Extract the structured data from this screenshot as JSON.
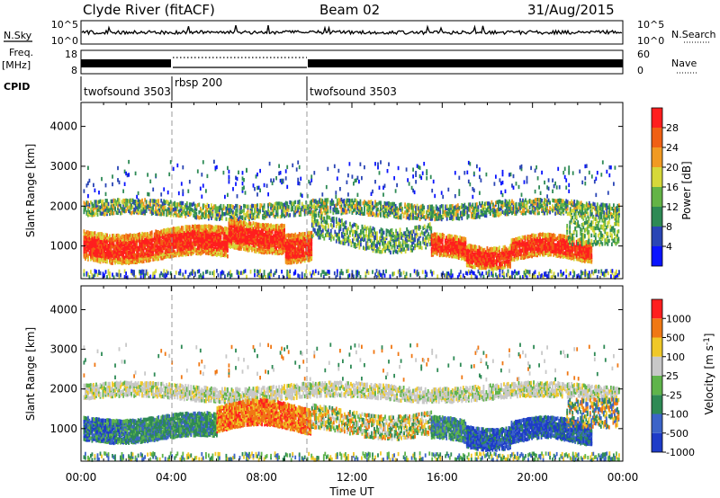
{
  "header": {
    "title": "Clyde River (fitACF)",
    "beam": "Beam 02",
    "date": "31/Aug/2015"
  },
  "top_panels": {
    "nsky_label": "N.Sky",
    "nsearch_label": "N.Search",
    "freq_label": "Freq.",
    "freq_unit": "[MHz]",
    "nave_label": "Nave",
    "cpid_label": "CPID",
    "nsky_ticks": [
      "10^5",
      "10^0"
    ],
    "nsearch_ticks": [
      "10^5",
      "10^0"
    ],
    "freq_ticks": [
      "18",
      "8"
    ],
    "nave_ticks": [
      "60",
      "0"
    ]
  },
  "cpid_segments": [
    {
      "label": "twofsound 3503",
      "start_hour": 0
    },
    {
      "label": "rbsp 200",
      "start_hour": 4
    },
    {
      "label": "twofsound 3503",
      "start_hour": 10
    }
  ],
  "chart_data": [
    {
      "type": "heatmap",
      "title": "Power",
      "ylabel": "Slant Range [km]",
      "xlabel": "",
      "x_range_hours": [
        0,
        24
      ],
      "ylim": [
        180,
        4600
      ],
      "yticks": [
        "1000",
        "2000",
        "3000",
        "4000"
      ],
      "colorbar_label": "Power [dB]",
      "colorbar_ticks": [
        "4",
        "8",
        "12",
        "16",
        "20",
        "24",
        "28"
      ],
      "colorbar_colors": [
        "#0a14ff",
        "#2a45b5",
        "#2e8a55",
        "#64b446",
        "#d6d83a",
        "#f19a22",
        "#f06014",
        "#ff1e1e"
      ],
      "bands": [
        {
          "name": "main",
          "start_hour": 0.2,
          "end_hour": 10.2,
          "center_km": 1000,
          "dominant": "high"
        },
        {
          "name": "upper",
          "start_hour": 0.2,
          "end_hour": 23.8,
          "center_km": 1950,
          "dominant": "mid"
        },
        {
          "name": "evening",
          "start_hour": 15.5,
          "end_hour": 22.5,
          "center_km": 950,
          "dominant": "high"
        }
      ]
    },
    {
      "type": "heatmap",
      "title": "Velocity",
      "ylabel": "Slant Range [km]",
      "xlabel": "Time UT",
      "x_range_hours": [
        0,
        24
      ],
      "xticks": [
        "00:00",
        "04:00",
        "08:00",
        "12:00",
        "16:00",
        "20:00",
        "00:00"
      ],
      "ylim": [
        180,
        4600
      ],
      "yticks": [
        "1000",
        "2000",
        "3000",
        "4000"
      ],
      "colorbar_label": "Velocity [m s",
      "colorbar_label_sup": "-1",
      "colorbar_label_end": "]",
      "colorbar_ticks": [
        "1000",
        "500",
        "100",
        "25",
        "-25",
        "-100",
        "-500",
        "-1000"
      ],
      "colorbar_colors": [
        "#1e3cc8",
        "#3c64c8",
        "#2e8a55",
        "#5fb44b",
        "#c8c8c8",
        "#f0c828",
        "#f07814",
        "#ff1e1e"
      ]
    }
  ]
}
